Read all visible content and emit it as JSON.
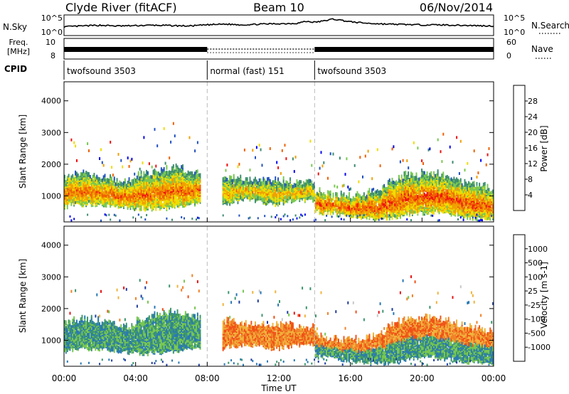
{
  "header": {
    "station": "Clyde River (fitACF)",
    "beam": "Beam 10",
    "date": "06/Nov/2014"
  },
  "chart_data": [
    {
      "type": "line",
      "panel": "noise",
      "left_label": "N.Sky",
      "right_label": "N.Search",
      "y_ticks_left": [
        "10^5",
        "10^0"
      ],
      "y_ticks_right": [
        "10^5",
        "10^0"
      ],
      "x_range_hours": [
        0,
        24
      ],
      "series": [
        {
          "x": [
            0,
            1,
            2,
            3,
            4,
            5,
            6,
            7,
            8,
            9,
            10,
            11,
            12,
            13,
            13.5,
            14,
            14.5,
            15,
            15.5,
            16,
            17,
            18,
            19,
            20,
            21,
            22,
            23,
            24
          ],
          "values": [
            2.1,
            2.3,
            2.5,
            2.3,
            2.4,
            2.5,
            2.4,
            2.3,
            2.6,
            2.8,
            2.6,
            2.8,
            2.9,
            3.0,
            3.5,
            3.3,
            3.6,
            4.1,
            3.8,
            3.4,
            3.0,
            2.8,
            2.7,
            2.6,
            2.6,
            2.5,
            2.4,
            2.3
          ]
        }
      ]
    },
    {
      "type": "line",
      "panel": "frequency",
      "left_label": "Freq.",
      "left_unit": "[MHz]",
      "right_label": "Nave",
      "y_ticks_left": [
        "10",
        "8"
      ],
      "y_ticks_right": [
        "60",
        "0"
      ],
      "segments": [
        {
          "start": 0,
          "end": 8,
          "style": "solid"
        },
        {
          "start": 8,
          "end": 14,
          "style": "dotted"
        },
        {
          "start": 14,
          "end": 24,
          "style": "solid"
        }
      ]
    },
    {
      "type": "table",
      "panel": "cpid",
      "label": "CPID",
      "modes": [
        {
          "name": "twofsound 3503",
          "start": 0,
          "end": 8
        },
        {
          "name": "normal (fast) 151",
          "start": 8,
          "end": 14
        },
        {
          "name": "twofsound 3503",
          "start": 14,
          "end": 24
        }
      ]
    },
    {
      "type": "heatmap",
      "panel": "power",
      "ylabel": "Slant Range [km]",
      "xlim": [
        0,
        24
      ],
      "ylim": [
        180,
        4600
      ],
      "y_ticks": [
        1000,
        2000,
        3000,
        4000
      ],
      "colorbar": {
        "label": "Power [dB]",
        "range": [
          0,
          32
        ],
        "ticks": [
          "28",
          "24",
          "20",
          "16",
          "12",
          "8",
          "4"
        ],
        "colors": [
          "#0000f0",
          "#2050c0",
          "#3c8c70",
          "#78c850",
          "#f0dc00",
          "#f0a000",
          "#f06000",
          "#f01010"
        ]
      }
    },
    {
      "type": "heatmap",
      "panel": "velocity",
      "ylabel": "Slant Range [km]",
      "xlabel": "Time UT",
      "xlim": [
        0,
        24
      ],
      "ylim": [
        180,
        4600
      ],
      "y_ticks": [
        1000,
        2000,
        3000,
        4000
      ],
      "x_ticks": [
        "00:00",
        "04:00",
        "08:00",
        "12:00",
        "16:00",
        "20:00",
        "00:00"
      ],
      "colorbar": {
        "label": "Velocity [m s-1]",
        "ticks": [
          "1000",
          "500",
          "100",
          "25",
          "-25",
          "-100",
          "-500",
          "-1000"
        ],
        "colors": [
          "#1e3ca0",
          "#2878b4",
          "#3c966e",
          "#78c850",
          "#c8c8c8",
          "#f0b43c",
          "#f08228",
          "#f05014",
          "#e61414"
        ]
      }
    }
  ]
}
